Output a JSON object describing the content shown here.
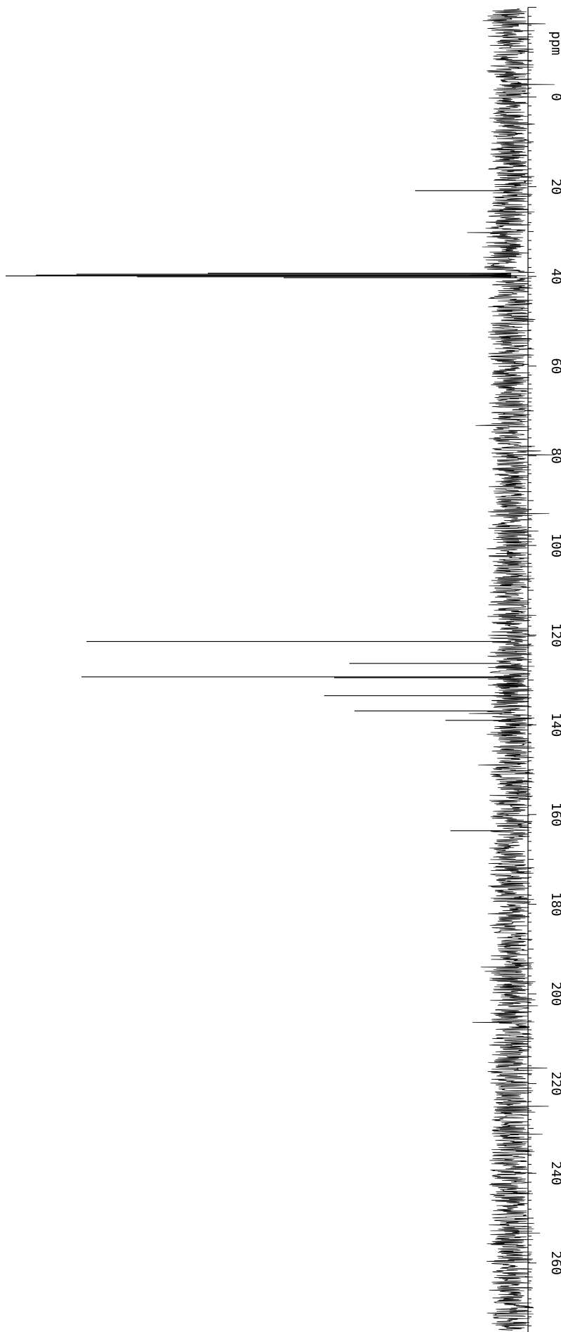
{
  "chart_data": {
    "type": "line",
    "orientation": "vertical-rotated",
    "xlabel": "ppm",
    "x_axis_unit": "ppm",
    "xlim": [
      -20,
      276
    ],
    "xticks": [
      "0",
      "20",
      "40",
      "60",
      "80",
      "100",
      "120",
      "140",
      "160",
      "180",
      "200",
      "220",
      "240",
      "260"
    ],
    "xtick_values": [
      0,
      20,
      40,
      60,
      80,
      100,
      120,
      140,
      160,
      180,
      200,
      220,
      240,
      260
    ],
    "ylabel": "",
    "grid": false,
    "legend": "none",
    "trace_color": "#000000",
    "series": [
      {
        "peaks": [
          {
            "ppm": 20.9,
            "intensity": 0.19
          },
          {
            "ppm": 39.3,
            "intensity": 0.6
          },
          {
            "ppm": 39.5,
            "intensity": 0.86
          },
          {
            "ppm": 39.7,
            "intensity": 0.94
          },
          {
            "ppm": 39.9,
            "intensity": 1.0
          },
          {
            "ppm": 40.1,
            "intensity": 0.74
          },
          {
            "ppm": 40.3,
            "intensity": 0.45
          },
          {
            "ppm": 121.4,
            "intensity": 0.84
          },
          {
            "ppm": 126.3,
            "intensity": 0.32
          },
          {
            "ppm": 129.3,
            "intensity": 0.85
          },
          {
            "ppm": 129.5,
            "intensity": 0.35
          },
          {
            "ppm": 133.5,
            "intensity": 0.37
          },
          {
            "ppm": 136.9,
            "intensity": 0.31
          },
          {
            "ppm": 139.0,
            "intensity": 0.13
          },
          {
            "ppm": 163.6,
            "intensity": 0.12
          }
        ]
      }
    ]
  }
}
